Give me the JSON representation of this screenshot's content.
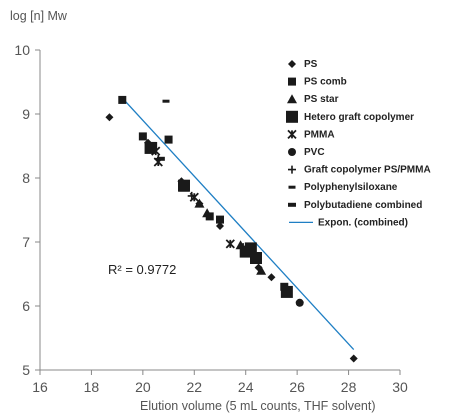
{
  "chart_data": {
    "type": "scatter",
    "title": "",
    "ylabel": "log [n] Mw",
    "xlabel": "Elution volume (5 mL counts, THF solvent)",
    "xlim": [
      16,
      30
    ],
    "ylim": [
      5,
      10
    ],
    "x_ticks": [
      "16",
      "18",
      "20",
      "22",
      "24",
      "26",
      "28",
      "30"
    ],
    "y_ticks": [
      "5",
      "6",
      "7",
      "8",
      "9",
      "10"
    ],
    "grid": false,
    "legend_position": "top-right",
    "annotation": {
      "text": "R² = 0.9772"
    },
    "series": [
      {
        "name": "PS",
        "marker": "diamond",
        "points": [
          [
            18.7,
            8.95
          ],
          [
            20.2,
            8.55
          ],
          [
            21.5,
            7.95
          ],
          [
            22.2,
            7.6
          ],
          [
            23.0,
            7.25
          ],
          [
            24.5,
            6.6
          ],
          [
            25.0,
            6.45
          ],
          [
            26.1,
            6.05
          ],
          [
            28.2,
            5.18
          ]
        ]
      },
      {
        "name": "PS comb",
        "marker": "square",
        "points": [
          [
            19.2,
            9.22
          ],
          [
            20.0,
            8.65
          ],
          [
            20.4,
            8.5
          ],
          [
            21.0,
            8.6
          ],
          [
            22.6,
            7.4
          ],
          [
            23.0,
            7.35
          ],
          [
            25.5,
            6.3
          ]
        ]
      },
      {
        "name": "PS star",
        "marker": "triangle",
        "points": [
          [
            21.6,
            7.85
          ],
          [
            22.2,
            7.6
          ],
          [
            22.5,
            7.45
          ],
          [
            23.8,
            6.95
          ],
          [
            24.6,
            6.55
          ]
        ]
      },
      {
        "name": "Hetero graft copolymer",
        "marker": "square-large",
        "points": [
          [
            20.3,
            8.47
          ],
          [
            21.6,
            7.88
          ],
          [
            24.0,
            6.85
          ],
          [
            24.2,
            6.9
          ],
          [
            24.4,
            6.75
          ],
          [
            25.6,
            6.22
          ]
        ]
      },
      {
        "name": "PMMA",
        "marker": "x",
        "points": [
          [
            20.5,
            8.42
          ],
          [
            20.6,
            8.25
          ],
          [
            22.0,
            7.7
          ],
          [
            23.4,
            6.97
          ]
        ]
      },
      {
        "name": "PVC",
        "marker": "circle",
        "points": [
          [
            26.1,
            6.05
          ]
        ]
      },
      {
        "name": "Graft copolymer PS/PMMA",
        "marker": "plus",
        "points": [
          [
            20.6,
            8.3
          ],
          [
            21.9,
            7.72
          ],
          [
            23.9,
            6.92
          ]
        ]
      },
      {
        "name": "Polyphenylsiloxane",
        "marker": "dash",
        "points": [
          [
            20.9,
            9.2
          ]
        ]
      },
      {
        "name": "Polybutadiene combined",
        "marker": "dash-thick",
        "points": [
          [
            20.7,
            8.3
          ]
        ]
      }
    ],
    "trendline": {
      "name": "Expon. (combined)",
      "color": "#1f7fc4",
      "points": [
        [
          19.2,
          9.25
        ],
        [
          28.2,
          5.32
        ]
      ]
    },
    "colors": {
      "marker": "#1a1a1a",
      "trendline": "#1f7fc4",
      "axis": "#888888"
    }
  }
}
